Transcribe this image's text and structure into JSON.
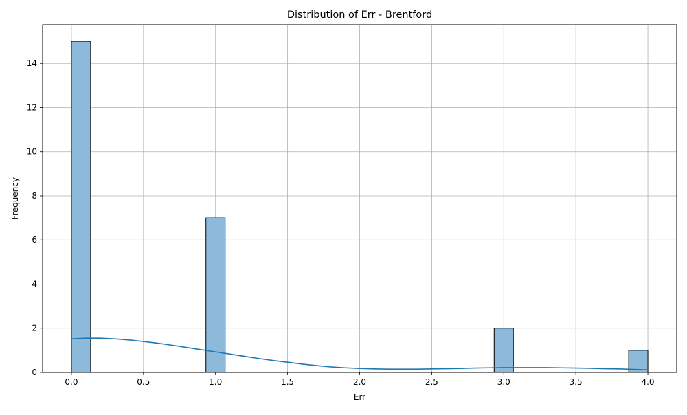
{
  "chart_data": {
    "type": "bar",
    "title": "Distribution of Err - Brentford",
    "xlabel": "Err",
    "ylabel": "Frequency",
    "xlim": [
      -0.2,
      4.2
    ],
    "ylim": [
      0,
      15.75
    ],
    "x_ticks": [
      "0.0",
      "0.5",
      "1.0",
      "1.5",
      "2.0",
      "2.5",
      "3.0",
      "3.5",
      "4.0"
    ],
    "y_ticks": [
      "0",
      "2",
      "4",
      "6",
      "8",
      "10",
      "12",
      "14"
    ],
    "grid": true,
    "bins": [
      {
        "x0": 0.0,
        "x1": 0.1333,
        "value": 15
      },
      {
        "x0": 0.9333,
        "x1": 1.0667,
        "value": 7
      },
      {
        "x0": 2.9333,
        "x1": 3.0667,
        "value": 2
      },
      {
        "x0": 3.8667,
        "x1": 4.0,
        "value": 1
      }
    ],
    "kde": {
      "x": [
        0.0,
        0.1,
        0.2,
        0.3,
        0.4,
        0.5,
        0.6,
        0.7,
        0.8,
        0.9,
        1.0,
        1.1,
        1.2,
        1.3,
        1.4,
        1.5,
        1.6,
        1.7,
        1.8,
        1.9,
        2.0,
        2.1,
        2.2,
        2.3,
        2.4,
        2.5,
        2.6,
        2.7,
        2.8,
        2.9,
        3.0,
        3.1,
        3.2,
        3.3,
        3.4,
        3.5,
        3.6,
        3.7,
        3.8,
        3.9,
        4.0
      ],
      "y": [
        1.52,
        1.55,
        1.55,
        1.52,
        1.47,
        1.4,
        1.32,
        1.23,
        1.13,
        1.03,
        0.93,
        0.83,
        0.73,
        0.63,
        0.54,
        0.46,
        0.38,
        0.31,
        0.25,
        0.21,
        0.18,
        0.16,
        0.15,
        0.15,
        0.15,
        0.16,
        0.17,
        0.18,
        0.2,
        0.21,
        0.22,
        0.22,
        0.22,
        0.22,
        0.21,
        0.2,
        0.19,
        0.17,
        0.16,
        0.14,
        0.12
      ]
    },
    "colors": {
      "bar_fill": "#8dbadb",
      "bar_edge": "#000000",
      "kde_line": "#1f77b4",
      "grid": "#b0b0b0"
    }
  }
}
